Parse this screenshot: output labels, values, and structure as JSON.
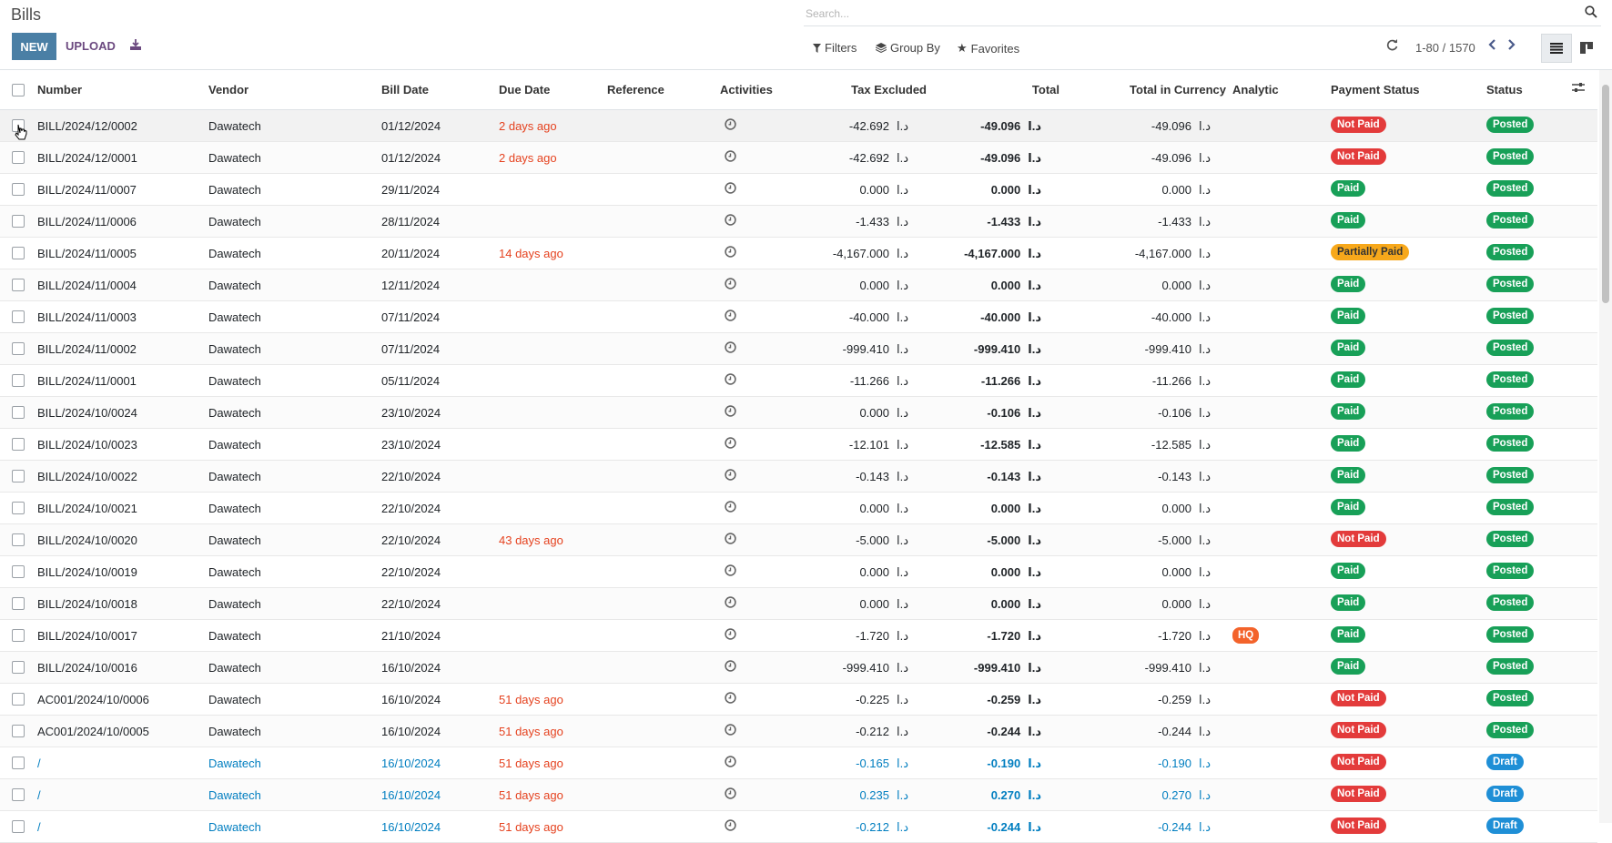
{
  "app": {
    "title": "Bills"
  },
  "search": {
    "placeholder": "Search..."
  },
  "toolbar": {
    "new_label": "NEW",
    "upload_label": "UPLOAD"
  },
  "filters": {
    "filters_label": "Filters",
    "groupby_label": "Group By",
    "favorites_label": "Favorites"
  },
  "pager": {
    "value": "1-80 / 1570"
  },
  "columns": {
    "number": "Number",
    "vendor": "Vendor",
    "bill_date": "Bill Date",
    "due_date": "Due Date",
    "reference": "Reference",
    "activities": "Activities",
    "tax_excluded": "Tax Excluded",
    "total": "Total",
    "total_in_currency": "Total in Currency",
    "analytic": "Analytic",
    "payment_status": "Payment Status",
    "status": "Status"
  },
  "currency_symbol": "د.ا",
  "colors": {
    "accent": "#4a7fa5",
    "not_paid": "#e33b3b",
    "paid": "#18a058",
    "partially_paid": "#f7a81b",
    "posted": "#18a058",
    "draft": "#1f8fd6",
    "overdue_text": "#e5421f",
    "draft_row_text": "#017ec0"
  },
  "rows": [
    {
      "number": "BILL/2024/12/0002",
      "vendor": "Dawatech",
      "bill_date": "01/12/2024",
      "due": "2 days ago",
      "tax_excluded": "-42.692",
      "total": "-49.096",
      "total_in_currency": "-49.096",
      "analytic": "",
      "payment_status": "Not Paid",
      "status": "Posted"
    },
    {
      "number": "BILL/2024/12/0001",
      "vendor": "Dawatech",
      "bill_date": "01/12/2024",
      "due": "2 days ago",
      "tax_excluded": "-42.692",
      "total": "-49.096",
      "total_in_currency": "-49.096",
      "analytic": "",
      "payment_status": "Not Paid",
      "status": "Posted"
    },
    {
      "number": "BILL/2024/11/0007",
      "vendor": "Dawatech",
      "bill_date": "29/11/2024",
      "due": "",
      "tax_excluded": "0.000",
      "total": "0.000",
      "total_in_currency": "0.000",
      "analytic": "",
      "payment_status": "Paid",
      "status": "Posted"
    },
    {
      "number": "BILL/2024/11/0006",
      "vendor": "Dawatech",
      "bill_date": "28/11/2024",
      "due": "",
      "tax_excluded": "-1.433",
      "total": "-1.433",
      "total_in_currency": "-1.433",
      "analytic": "",
      "payment_status": "Paid",
      "status": "Posted"
    },
    {
      "number": "BILL/2024/11/0005",
      "vendor": "Dawatech",
      "bill_date": "20/11/2024",
      "due": "14 days ago",
      "tax_excluded": "-4,167.000",
      "total": "-4,167.000",
      "total_in_currency": "-4,167.000",
      "analytic": "",
      "payment_status": "Partially Paid",
      "status": "Posted"
    },
    {
      "number": "BILL/2024/11/0004",
      "vendor": "Dawatech",
      "bill_date": "12/11/2024",
      "due": "",
      "tax_excluded": "0.000",
      "total": "0.000",
      "total_in_currency": "0.000",
      "analytic": "",
      "payment_status": "Paid",
      "status": "Posted"
    },
    {
      "number": "BILL/2024/11/0003",
      "vendor": "Dawatech",
      "bill_date": "07/11/2024",
      "due": "",
      "tax_excluded": "-40.000",
      "total": "-40.000",
      "total_in_currency": "-40.000",
      "analytic": "",
      "payment_status": "Paid",
      "status": "Posted"
    },
    {
      "number": "BILL/2024/11/0002",
      "vendor": "Dawatech",
      "bill_date": "07/11/2024",
      "due": "",
      "tax_excluded": "-999.410",
      "total": "-999.410",
      "total_in_currency": "-999.410",
      "analytic": "",
      "payment_status": "Paid",
      "status": "Posted"
    },
    {
      "number": "BILL/2024/11/0001",
      "vendor": "Dawatech",
      "bill_date": "05/11/2024",
      "due": "",
      "tax_excluded": "-11.266",
      "total": "-11.266",
      "total_in_currency": "-11.266",
      "analytic": "",
      "payment_status": "Paid",
      "status": "Posted"
    },
    {
      "number": "BILL/2024/10/0024",
      "vendor": "Dawatech",
      "bill_date": "23/10/2024",
      "due": "",
      "tax_excluded": "0.000",
      "total": "-0.106",
      "total_in_currency": "-0.106",
      "analytic": "",
      "payment_status": "Paid",
      "status": "Posted"
    },
    {
      "number": "BILL/2024/10/0023",
      "vendor": "Dawatech",
      "bill_date": "23/10/2024",
      "due": "",
      "tax_excluded": "-12.101",
      "total": "-12.585",
      "total_in_currency": "-12.585",
      "analytic": "",
      "payment_status": "Paid",
      "status": "Posted"
    },
    {
      "number": "BILL/2024/10/0022",
      "vendor": "Dawatech",
      "bill_date": "22/10/2024",
      "due": "",
      "tax_excluded": "-0.143",
      "total": "-0.143",
      "total_in_currency": "-0.143",
      "analytic": "",
      "payment_status": "Paid",
      "status": "Posted"
    },
    {
      "number": "BILL/2024/10/0021",
      "vendor": "Dawatech",
      "bill_date": "22/10/2024",
      "due": "",
      "tax_excluded": "0.000",
      "total": "0.000",
      "total_in_currency": "0.000",
      "analytic": "",
      "payment_status": "Paid",
      "status": "Posted"
    },
    {
      "number": "BILL/2024/10/0020",
      "vendor": "Dawatech",
      "bill_date": "22/10/2024",
      "due": "43 days ago",
      "tax_excluded": "-5.000",
      "total": "-5.000",
      "total_in_currency": "-5.000",
      "analytic": "",
      "payment_status": "Not Paid",
      "status": "Posted"
    },
    {
      "number": "BILL/2024/10/0019",
      "vendor": "Dawatech",
      "bill_date": "22/10/2024",
      "due": "",
      "tax_excluded": "0.000",
      "total": "0.000",
      "total_in_currency": "0.000",
      "analytic": "",
      "payment_status": "Paid",
      "status": "Posted"
    },
    {
      "number": "BILL/2024/10/0018",
      "vendor": "Dawatech",
      "bill_date": "22/10/2024",
      "due": "",
      "tax_excluded": "0.000",
      "total": "0.000",
      "total_in_currency": "0.000",
      "analytic": "",
      "payment_status": "Paid",
      "status": "Posted"
    },
    {
      "number": "BILL/2024/10/0017",
      "vendor": "Dawatech",
      "bill_date": "21/10/2024",
      "due": "",
      "tax_excluded": "-1.720",
      "total": "-1.720",
      "total_in_currency": "-1.720",
      "analytic": "HQ",
      "payment_status": "Paid",
      "status": "Posted"
    },
    {
      "number": "BILL/2024/10/0016",
      "vendor": "Dawatech",
      "bill_date": "16/10/2024",
      "due": "",
      "tax_excluded": "-999.410",
      "total": "-999.410",
      "total_in_currency": "-999.410",
      "analytic": "",
      "payment_status": "Paid",
      "status": "Posted"
    },
    {
      "number": "AC001/2024/10/0006",
      "vendor": "Dawatech",
      "bill_date": "16/10/2024",
      "due": "51 days ago",
      "tax_excluded": "-0.225",
      "total": "-0.259",
      "total_in_currency": "-0.259",
      "analytic": "",
      "payment_status": "Not Paid",
      "status": "Posted"
    },
    {
      "number": "AC001/2024/10/0005",
      "vendor": "Dawatech",
      "bill_date": "16/10/2024",
      "due": "51 days ago",
      "tax_excluded": "-0.212",
      "total": "-0.244",
      "total_in_currency": "-0.244",
      "analytic": "",
      "payment_status": "Not Paid",
      "status": "Posted"
    },
    {
      "number": "/",
      "vendor": "Dawatech",
      "bill_date": "16/10/2024",
      "due": "51 days ago",
      "tax_excluded": "-0.165",
      "total": "-0.190",
      "total_in_currency": "-0.190",
      "analytic": "",
      "payment_status": "Not Paid",
      "status": "Draft"
    },
    {
      "number": "/",
      "vendor": "Dawatech",
      "bill_date": "16/10/2024",
      "due": "51 days ago",
      "tax_excluded": "0.235",
      "total": "0.270",
      "total_in_currency": "0.270",
      "analytic": "",
      "payment_status": "Not Paid",
      "status": "Draft"
    },
    {
      "number": "/",
      "vendor": "Dawatech",
      "bill_date": "16/10/2024",
      "due": "51 days ago",
      "tax_excluded": "-0.212",
      "total": "-0.244",
      "total_in_currency": "-0.244",
      "analytic": "",
      "payment_status": "Not Paid",
      "status": "Draft"
    }
  ]
}
